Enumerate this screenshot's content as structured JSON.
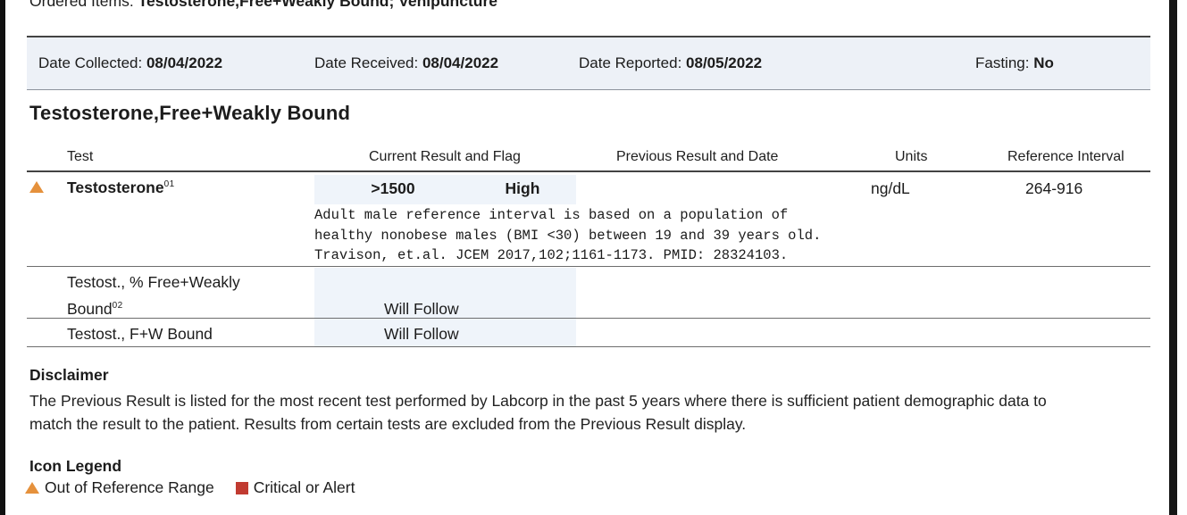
{
  "ordered_items": {
    "label": "Ordered Items:",
    "value": "Testosterone,Free+Weakly Bound; Venipuncture"
  },
  "date_bar": {
    "collected": {
      "label": "Date Collected:",
      "value": "08/04/2022"
    },
    "received": {
      "label": "Date Received:",
      "value": "08/04/2022"
    },
    "reported": {
      "label": "Date Reported:",
      "value": "08/05/2022"
    },
    "fasting": {
      "label": "Fasting:",
      "value": "No"
    }
  },
  "section": {
    "title": "Testosterone,Free+Weakly Bound"
  },
  "results_table": {
    "headers": {
      "test": "Test",
      "current": "Current Result and Flag",
      "previous": "Previous Result and Date",
      "units": "Units",
      "reference": "Reference Interval"
    },
    "rows": [
      {
        "flag_icon": "out-of-range-triangle",
        "name": "Testosterone",
        "superscript": "01",
        "result": ">1500",
        "flag": "High",
        "units": "ng/dL",
        "reference": "264-916",
        "note_lines": [
          "Adult male reference interval is based on a population of",
          "healthy nonobese males (BMI <30) between 19 and 39 years old.",
          "Travison, et.al. JCEM 2017,102;1161-1173. PMID: 28324103."
        ]
      },
      {
        "name_line1": "Testost., % Free+Weakly",
        "name_line2": "Bound",
        "superscript": "02",
        "result": "Will Follow"
      },
      {
        "name": "Testost., F+W Bound",
        "result": "Will Follow"
      }
    ]
  },
  "disclaimer": {
    "title": "Disclaimer",
    "lines": [
      "The Previous Result is listed for the most recent test performed by Labcorp in the past 5 years where there is sufficient patient demographic data to",
      "match the result to the patient. Results from certain tests are excluded from the Previous Result display."
    ]
  },
  "icon_legend": {
    "title": "Icon Legend",
    "items": [
      {
        "icon": "out-of-range-triangle",
        "label": "Out of Reference Range"
      },
      {
        "icon": "critical-square",
        "label": "Critical or Alert"
      }
    ]
  },
  "colors": {
    "accent_orange": "#E5913C",
    "alert_red": "#C13B31",
    "band_bg": "#EFF4FA",
    "datebar_bg": "#EDF1F7"
  }
}
